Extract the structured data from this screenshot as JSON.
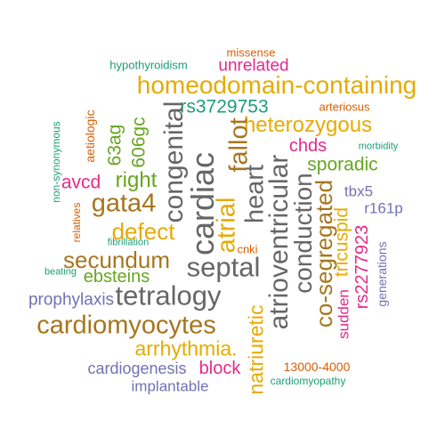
{
  "words": [
    {
      "id": "hypothyroidism",
      "text": "hypothyroidism",
      "color": "#1b9e77"
    },
    {
      "id": "missense",
      "text": "missense",
      "color": "#d95f02"
    },
    {
      "id": "unrelated",
      "text": "unrelated",
      "color": "#e7298a"
    },
    {
      "id": "homeodomain-containing",
      "text": "homeodomain-containing",
      "color": "#e6ab02"
    },
    {
      "id": "rs3729753",
      "text": "rs3729753",
      "color": "#1b9e77"
    },
    {
      "id": "arteriosus",
      "text": "arteriosus",
      "color": "#d95f02"
    },
    {
      "id": "heterozygous",
      "text": "heterozygous",
      "color": "#e6ab02"
    },
    {
      "id": "chds",
      "text": "chds",
      "color": "#e7298a"
    },
    {
      "id": "morbidity",
      "text": "morbidity",
      "color": "#1b9e77"
    },
    {
      "id": "sporadic",
      "text": "sporadic",
      "color": "#66a61e"
    },
    {
      "id": "aetiologic",
      "text": "aetiologic",
      "color": "#d95f02"
    },
    {
      "id": "63ag",
      "text": "63ag",
      "color": "#66a61e"
    },
    {
      "id": "606gc",
      "text": "606gc",
      "color": "#66a61e"
    },
    {
      "id": "congenital",
      "text": "congenital",
      "color": "#666666"
    },
    {
      "id": "cardiac",
      "text": "cardiac",
      "color": "#666666"
    },
    {
      "id": "atrial",
      "text": "atrial",
      "color": "#e6ab02"
    },
    {
      "id": "fallot",
      "text": "fallot",
      "color": "#a6761d"
    },
    {
      "id": "heart",
      "text": "heart",
      "color": "#666666"
    },
    {
      "id": "atrioventricular",
      "text": "atrioventricular",
      "color": "#666666"
    },
    {
      "id": "non-synonymous",
      "text": "non-synonymous",
      "color": "#1b9e77"
    },
    {
      "id": "avcd",
      "text": "avcd",
      "color": "#e7298a"
    },
    {
      "id": "right",
      "text": "right",
      "color": "#66a61e"
    },
    {
      "id": "gata4",
      "text": "gata4",
      "color": "#a6761d"
    },
    {
      "id": "conduction",
      "text": "conduction",
      "color": "#666666"
    },
    {
      "id": "co-segregated",
      "text": "co-segregated",
      "color": "#a6761d"
    },
    {
      "id": "tbx5",
      "text": "tbx5",
      "color": "#7570b3"
    },
    {
      "id": "r161p",
      "text": "r161p",
      "color": "#7570b3"
    },
    {
      "id": "relatives",
      "text": "relatives",
      "color": "#d95f02"
    },
    {
      "id": "defect",
      "text": "defect",
      "color": "#e6ab02"
    },
    {
      "id": "tricuspid",
      "text": "tricuspid",
      "color": "#e6ab02"
    },
    {
      "id": "rs2277923",
      "text": "rs2277923",
      "color": "#e7298a"
    },
    {
      "id": "fibrillation",
      "text": "fibrillation",
      "color": "#1b9e77"
    },
    {
      "id": "cnki",
      "text": "cnki",
      "color": "#d95f02"
    },
    {
      "id": "generations",
      "text": "generations",
      "color": "#7570b3"
    },
    {
      "id": "secundum",
      "text": "secundum",
      "color": "#a6761d"
    },
    {
      "id": "septal",
      "text": "septal",
      "color": "#666666"
    },
    {
      "id": "beating",
      "text": "beating",
      "color": "#1b9e77"
    },
    {
      "id": "ebsteins",
      "text": "ebsteins",
      "color": "#66a61e"
    },
    {
      "id": "sudden",
      "text": "sudden",
      "color": "#e7298a"
    },
    {
      "id": "prophylaxis",
      "text": "prophylaxis",
      "color": "#7570b3"
    },
    {
      "id": "tetralogy",
      "text": "tetralogy",
      "color": "#666666"
    },
    {
      "id": "natriuretic",
      "text": "natriuretic",
      "color": "#e6ab02"
    },
    {
      "id": "cardiomyocytes",
      "text": "cardiomyocytes",
      "color": "#a6761d"
    },
    {
      "id": "arrhythmia.",
      "text": "arrhythmia.",
      "color": "#e6ab02"
    },
    {
      "id": "cardiogenesis",
      "text": "cardiogenesis",
      "color": "#7570b3"
    },
    {
      "id": "block",
      "text": "block",
      "color": "#e7298a"
    },
    {
      "id": "13000-4000",
      "text": "13000-4000",
      "color": "#d95f02"
    },
    {
      "id": "implantable",
      "text": "implantable",
      "color": "#7570b3"
    },
    {
      "id": "cardiomyopathy",
      "text": "cardiomyopathy",
      "color": "#1b9e77"
    }
  ]
}
